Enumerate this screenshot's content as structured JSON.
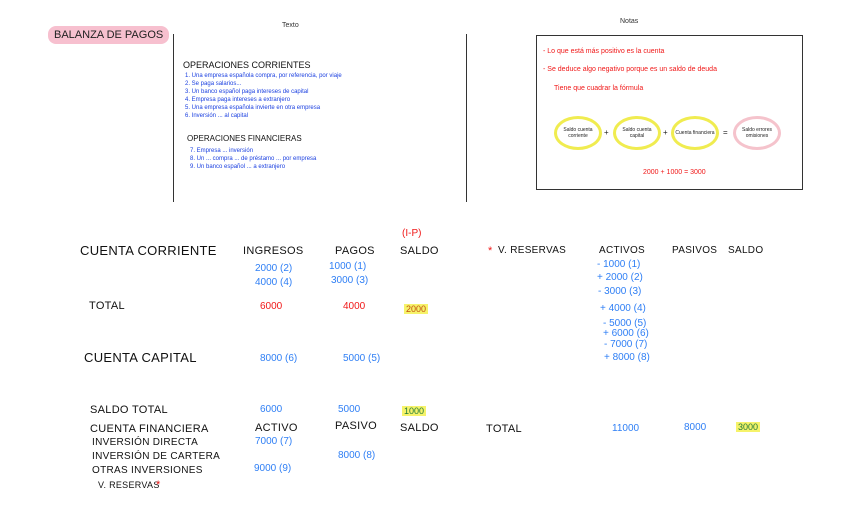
{
  "title": "Balanza de pagos",
  "left_panel": {
    "title": "Texto",
    "heading1": "Operaciones corrientes",
    "items1": [
      "1. Una empresa española compra, por referencia, por viaje",
      "2. Se paga salarios...",
      "3. Un banco español paga intereses de capital",
      "4. Empresa paga intereses a extranjero",
      "5. Una empresa española invierte en otra empresa",
      "6. Inversión ... al capital"
    ],
    "heading2": "Operaciones financieras",
    "items2": [
      "7. Empresa ... inversión",
      "8. Un ... compra ... de préstamo ... por empresa",
      "9. Un banco español ... a extranjero"
    ]
  },
  "right_panel": {
    "title": "Notas",
    "lines": [
      "- Lo que está más positivo es la cuenta",
      "- Se deduce algo negativo porque es un saldo de deuda",
      "Tiene que cuadrar la fórmula"
    ],
    "ovals": [
      "Saldo cuenta corriente",
      "Saldo cuenta capital",
      "Cuenta financiera",
      "Saldo errores omisiones"
    ],
    "operators": [
      "+",
      "+",
      "="
    ],
    "equation": "2000 + 1000 = 3000"
  },
  "cuenta_corriente": {
    "label": "Cuenta corriente",
    "headers": [
      "Ingresos",
      "Pagos",
      "Saldo"
    ],
    "saldo_note": "(I-P)",
    "ingresos": [
      "2000 (2)",
      "4000 (4)"
    ],
    "pagos": [
      "1000 (1)",
      "3000 (3)"
    ],
    "total_label": "Total",
    "total": [
      "6000",
      "4000",
      "2000"
    ]
  },
  "reservas": {
    "label": "V. reservas",
    "mark": "*",
    "headers": [
      "Activos",
      "Pasivos",
      "Saldo"
    ],
    "activos": [
      "- 1000 (1)",
      "+ 2000 (2)",
      "- 3000 (3)",
      "+ 4000 (4)",
      "- 5000 (5)",
      "+ 6000 (6)",
      "- 7000 (7)",
      "+ 8000 (8)"
    ],
    "total_label": "Total",
    "total": [
      "11000",
      "8000",
      "3000"
    ]
  },
  "cuenta_capital": {
    "label": "Cuenta capital",
    "ingresos": "8000 (6)",
    "pagos": "5000 (5)"
  },
  "saldo_total": {
    "label": "Saldo total",
    "values": [
      "6000",
      "5000",
      "1000"
    ]
  },
  "cuenta_financiera": {
    "label": "Cuenta financiera",
    "headers": [
      "Activo",
      "Pasivo",
      "Saldo"
    ],
    "rows": [
      {
        "label": "Inversión directa",
        "activo": "7000 (7)",
        "pasivo": ""
      },
      {
        "label": "Inversión de cartera",
        "activo": "",
        "pasivo": "8000 (8)"
      },
      {
        "label": "Otras inversiones",
        "activo": "9000 (9)",
        "pasivo": ""
      },
      {
        "label": "V. reservas",
        "mark": "*"
      }
    ]
  }
}
